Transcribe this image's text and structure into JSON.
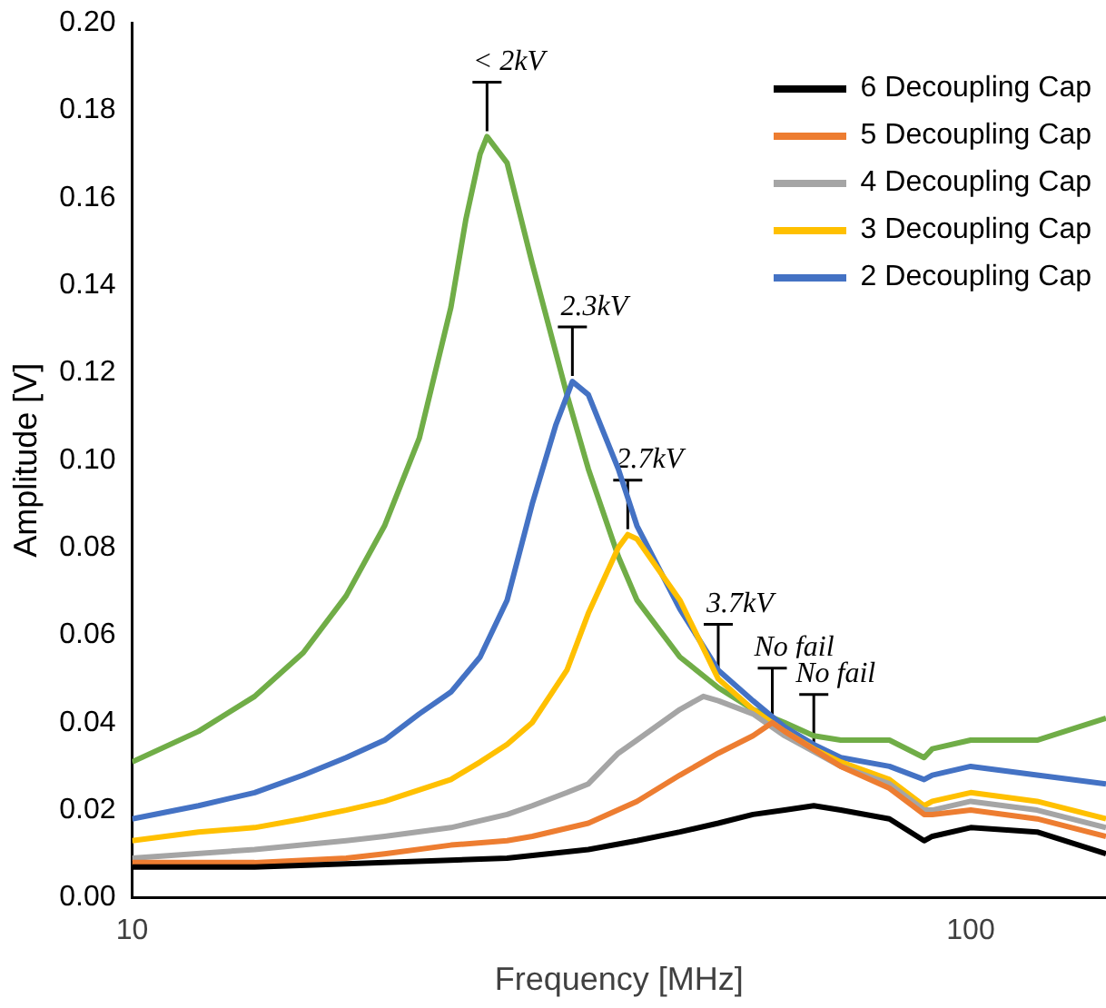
{
  "chart_data": {
    "type": "line",
    "xlabel": "Frequency [MHz]",
    "ylabel": "Amplitude [V]",
    "log": "x",
    "xlim": [
      10,
      145
    ],
    "xticks": [
      10,
      100
    ],
    "ylim": [
      0,
      0.2
    ],
    "yticks": [
      {
        "value": 0,
        "label": "0.00"
      },
      {
        "value": 0.02,
        "label": "0.02"
      },
      {
        "value": 0.04,
        "label": "0.04"
      },
      {
        "value": 0.06,
        "label": "0.06"
      },
      {
        "value": 0.08,
        "label": "0.08"
      },
      {
        "value": 0.1,
        "label": "0.10"
      },
      {
        "value": 0.12,
        "label": "0.12"
      },
      {
        "value": 0.14,
        "label": "0.14"
      },
      {
        "value": 0.16,
        "label": "0.16"
      },
      {
        "value": 0.18,
        "label": "0.18"
      },
      {
        "value": 0.2,
        "label": "0.20"
      }
    ],
    "grid": false,
    "legend": "top right",
    "marker": "none",
    "line_style": "solid",
    "series": [
      {
        "name": "6 Decoupling Cap",
        "color": "#000000",
        "x": [
          10,
          14,
          20,
          28,
          35,
          40,
          45,
          50,
          55,
          60,
          65,
          70,
          80,
          88,
          90,
          100,
          120,
          145
        ],
        "values": [
          0.007,
          0.007,
          0.008,
          0.009,
          0.011,
          0.013,
          0.015,
          0.017,
          0.019,
          0.02,
          0.021,
          0.02,
          0.018,
          0.013,
          0.014,
          0.016,
          0.015,
          0.01
        ]
      },
      {
        "name": "5 Decoupling Cap",
        "color": "#ed7d31",
        "x": [
          10,
          14,
          18,
          20,
          24,
          28,
          30,
          35,
          40,
          45,
          50,
          55,
          58,
          60,
          70,
          80,
          88,
          90,
          100,
          120,
          145
        ],
        "values": [
          0.008,
          0.008,
          0.009,
          0.01,
          0.012,
          0.013,
          0.014,
          0.017,
          0.022,
          0.028,
          0.033,
          0.037,
          0.04,
          0.038,
          0.03,
          0.025,
          0.019,
          0.019,
          0.02,
          0.018,
          0.014
        ]
      },
      {
        "name": "4 Decoupling Cap",
        "color": "#a5a5a5",
        "x": [
          10,
          14,
          18,
          20,
          24,
          28,
          30,
          33,
          35,
          38,
          40,
          45,
          48,
          50,
          55,
          60,
          70,
          80,
          88,
          90,
          100,
          120,
          145
        ],
        "values": [
          0.009,
          0.011,
          0.013,
          0.014,
          0.016,
          0.019,
          0.021,
          0.024,
          0.026,
          0.033,
          0.036,
          0.043,
          0.046,
          0.045,
          0.042,
          0.037,
          0.03,
          0.026,
          0.02,
          0.02,
          0.022,
          0.02,
          0.016
        ]
      },
      {
        "name": "3 Decoupling Cap",
        "color": "#ffc000",
        "x": [
          10,
          12,
          14,
          16,
          18,
          20,
          24,
          26,
          28,
          30,
          33,
          35,
          38,
          39,
          40,
          45,
          50,
          55,
          60,
          65,
          70,
          80,
          88,
          90,
          100,
          120,
          145
        ],
        "values": [
          0.013,
          0.015,
          0.016,
          0.018,
          0.02,
          0.022,
          0.027,
          0.031,
          0.035,
          0.04,
          0.052,
          0.065,
          0.08,
          0.083,
          0.082,
          0.068,
          0.05,
          0.043,
          0.038,
          0.034,
          0.031,
          0.027,
          0.021,
          0.022,
          0.024,
          0.022,
          0.018
        ]
      },
      {
        "name": "2 Decoupling Cap",
        "color": "#4472c4",
        "x": [
          10,
          12,
          14,
          16,
          18,
          20,
          22,
          24,
          26,
          28,
          30,
          32,
          33.5,
          35,
          38,
          40,
          45,
          50,
          55,
          60,
          65,
          70,
          80,
          88,
          90,
          100,
          120,
          145
        ],
        "values": [
          0.018,
          0.021,
          0.024,
          0.028,
          0.032,
          0.036,
          0.042,
          0.047,
          0.055,
          0.068,
          0.09,
          0.108,
          0.118,
          0.115,
          0.098,
          0.085,
          0.066,
          0.052,
          0.045,
          0.039,
          0.035,
          0.032,
          0.03,
          0.027,
          0.028,
          0.03,
          0.028,
          0.026
        ]
      },
      {
        "color": "#70ad47",
        "x": [
          10,
          12,
          14,
          16,
          18,
          20,
          22,
          24,
          25,
          26,
          26.5,
          28,
          30,
          33,
          35,
          38,
          40,
          45,
          50,
          55,
          60,
          65,
          70,
          80,
          88,
          90,
          100,
          120,
          145
        ],
        "values": [
          0.031,
          0.038,
          0.046,
          0.056,
          0.069,
          0.085,
          0.105,
          0.135,
          0.155,
          0.17,
          0.174,
          0.168,
          0.145,
          0.115,
          0.098,
          0.078,
          0.068,
          0.055,
          0.048,
          0.043,
          0.04,
          0.037,
          0.036,
          0.036,
          0.032,
          0.034,
          0.036,
          0.036,
          0.041
        ]
      }
    ],
    "annotations": [
      {
        "text": "< 2kV",
        "x": 26.5,
        "y": 0.174
      },
      {
        "text": "2.3kV",
        "x": 33.5,
        "y": 0.118
      },
      {
        "text": "2.7kV",
        "x": 39,
        "y": 0.083
      },
      {
        "text": "3.7kV",
        "x": 50,
        "y": 0.05
      },
      {
        "text": "No fail",
        "x": 58,
        "y": 0.04
      },
      {
        "text": "No fail",
        "x": 65,
        "y": 0.034
      }
    ]
  }
}
